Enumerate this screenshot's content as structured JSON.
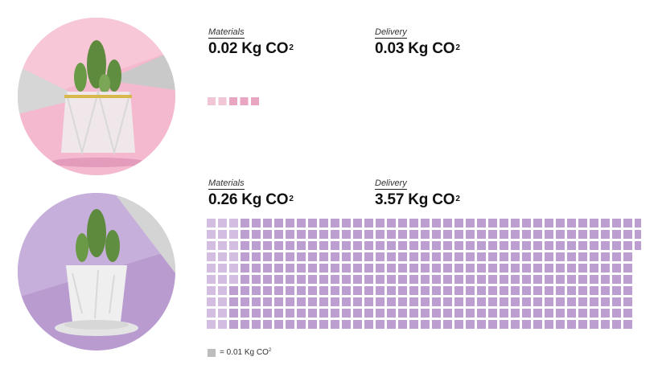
{
  "colors": {
    "pink_light": "#f1c7d7",
    "pink_dark": "#e8a6c2",
    "purple_light": "#d3bde1",
    "purple_dark": "#bc9fd0",
    "legend": "#bdbdbd"
  },
  "products": [
    {
      "image_label": "cactus in paper origami pot",
      "materials_label": "Materials",
      "materials_value": "0.02 Kg CO",
      "delivery_label": "Delivery",
      "delivery_value": "0.03 Kg CO",
      "superscript": "2"
    },
    {
      "image_label": "cactus in white ceramic pot",
      "materials_label": "Materials",
      "materials_value": "0.26 Kg CO",
      "delivery_label": "Delivery",
      "delivery_value": "3.57 Kg CO",
      "superscript": "2"
    }
  ],
  "legend": {
    "text": "= 0.01 Kg CO",
    "superscript": "2"
  },
  "chart_data": [
    {
      "type": "waffle",
      "unit": 0.01,
      "series": [
        {
          "name": "Materials",
          "value": 0.02,
          "squares": 2
        },
        {
          "name": "Delivery",
          "value": 0.03,
          "squares": 3
        }
      ]
    },
    {
      "type": "waffle",
      "unit": 0.01,
      "series": [
        {
          "name": "Materials",
          "value": 0.26,
          "squares": 26
        },
        {
          "name": "Delivery",
          "value": 3.57,
          "squares": 357
        }
      ]
    }
  ]
}
